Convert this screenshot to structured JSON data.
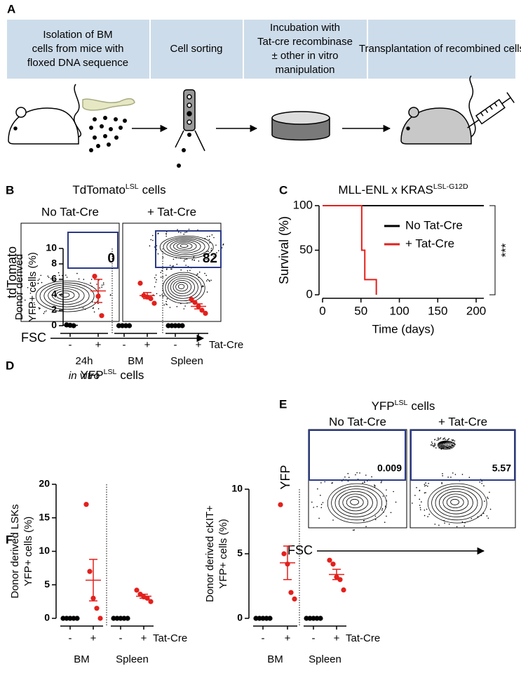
{
  "panel_labels": [
    "A",
    "B",
    "C",
    "D",
    "E",
    "F"
  ],
  "workflow": {
    "steps": [
      [
        "Isolation of BM",
        "cells from mice with",
        "floxed DNA sequence"
      ],
      [
        "Cell sorting"
      ],
      [
        "Incubation with",
        "Tat-cre recombinase",
        "± other in vitro",
        "manipulation"
      ],
      [
        "Transplantation of  recombined cells"
      ]
    ]
  },
  "flow_b": {
    "title": "TdTomato",
    "title_sup": "LSL",
    "title_suffix": "cells",
    "conditions": [
      "No Tat-Cre",
      "+ Tat-Cre"
    ],
    "y_label": "tdTomato",
    "x_label": "FSC",
    "gate_values": [
      0,
      82
    ]
  },
  "flow_e": {
    "title": "YFP",
    "title_sup": "LSL",
    "title_suffix": "cells",
    "conditions": [
      "No Tat-Cre",
      "+ Tat-Cre"
    ],
    "y_label": "YFP",
    "x_label": "FSC",
    "gate_values": [
      0.009,
      5.57
    ]
  },
  "chart_data": [
    {
      "type": "line",
      "title": "MLL-ENL x KRAS",
      "title_sup": "LSL-G12D",
      "xlabel": "Time (days)",
      "ylabel": "Survival (%)",
      "xlim": [
        0,
        210
      ],
      "ylim": [
        0,
        100
      ],
      "xticks": [
        0,
        50,
        100,
        150,
        200
      ],
      "yticks": [
        0,
        50,
        100
      ],
      "series": [
        {
          "name": "No Tat-Cre",
          "color": "#000000",
          "x": [
            0,
            210
          ],
          "values": [
            100,
            100
          ]
        },
        {
          "name": "+ Tat-Cre",
          "color": "#e3201c",
          "x": [
            0,
            51,
            51,
            55,
            55,
            70,
            70
          ],
          "values": [
            100,
            100,
            50,
            50,
            17,
            17,
            0
          ]
        }
      ],
      "annotation": "***"
    },
    {
      "type": "scatter",
      "title": "YFP",
      "title_sup": "LSL",
      "title_suffix": "cells",
      "ylabel": [
        "Donor derived",
        "YFP+ cells (%)"
      ],
      "ylim": [
        0,
        10
      ],
      "yticks": [
        0,
        2,
        4,
        6,
        8,
        10
      ],
      "colors": [
        "#000000",
        "#e3201c"
      ],
      "treatment_label": "Tat-Cre",
      "groups": [
        {
          "label": "24h",
          "sublabel": "in vitro",
          "ticks": [
            "-",
            "+"
          ],
          "values": [
            [
              0.1,
              0.05,
              0
            ],
            [
              6.4,
              3.8,
              1.3
            ]
          ],
          "means": [
            0.05,
            4.5
          ],
          "sems": [
            0.03,
            1.5
          ]
        },
        {
          "label": "BM",
          "ticks": [
            "-",
            "+"
          ],
          "values": [
            [
              0,
              0,
              0,
              0
            ],
            [
              5.5,
              3.9,
              3.7,
              3.5,
              2.9
            ]
          ],
          "means": [
            0,
            3.9
          ],
          "sems": [
            0,
            0.4
          ]
        },
        {
          "label": "Spleen",
          "ticks": [
            "-",
            "+"
          ],
          "values": [
            [
              0,
              0,
              0,
              0,
              0
            ],
            [
              3.4,
              3.0,
              2.5,
              2.0,
              1.6
            ]
          ],
          "means": [
            0,
            2.5
          ],
          "sems": [
            0,
            0.33
          ]
        }
      ]
    },
    {
      "type": "scatter",
      "ylabel": [
        "Donor derived LSKs",
        "YFP+ cells (%)"
      ],
      "ylim": [
        0,
        20
      ],
      "yticks": [
        0,
        5,
        10,
        15,
        20
      ],
      "colors": [
        "#000000",
        "#e3201c"
      ],
      "treatment_label": "Tat-Cre",
      "groups": [
        {
          "label": "BM",
          "ticks": [
            "-",
            "+"
          ],
          "values": [
            [
              0,
              0,
              0,
              0,
              0
            ],
            [
              17,
              7,
              3,
              1.5,
              0
            ]
          ],
          "means": [
            0,
            5.7
          ],
          "sems": [
            0,
            3.1
          ]
        },
        {
          "label": "Spleen",
          "ticks": [
            "-",
            "+"
          ],
          "values": [
            [
              0,
              0,
              0,
              0,
              0
            ],
            [
              4.2,
              3.6,
              3.2,
              3.0,
              2.5
            ]
          ],
          "means": [
            0,
            3.3
          ],
          "sems": [
            0,
            0.3
          ]
        }
      ]
    },
    {
      "type": "scatter",
      "ylabel": [
        "Donor derived cKIT+",
        "YFP+ cells (%)"
      ],
      "ylim": [
        0,
        10
      ],
      "yticks": [
        0,
        5,
        10
      ],
      "colors": [
        "#000000",
        "#e3201c"
      ],
      "treatment_label": "Tat-Cre",
      "groups": [
        {
          "label": "BM",
          "ticks": [
            "-",
            "+"
          ],
          "values": [
            [
              0,
              0,
              0,
              0,
              0
            ],
            [
              8.8,
              5.0,
              4.2,
              2.0,
              1.5
            ]
          ],
          "means": [
            0,
            4.3
          ],
          "sems": [
            0,
            1.3
          ]
        },
        {
          "label": "Spleen",
          "ticks": [
            "-",
            "+"
          ],
          "values": [
            [
              0,
              0,
              0,
              0,
              0
            ],
            [
              4.5,
              4.2,
              3.2,
              3.0,
              2.2
            ]
          ],
          "means": [
            0,
            3.4
          ],
          "sems": [
            0,
            0.4
          ]
        }
      ]
    }
  ]
}
